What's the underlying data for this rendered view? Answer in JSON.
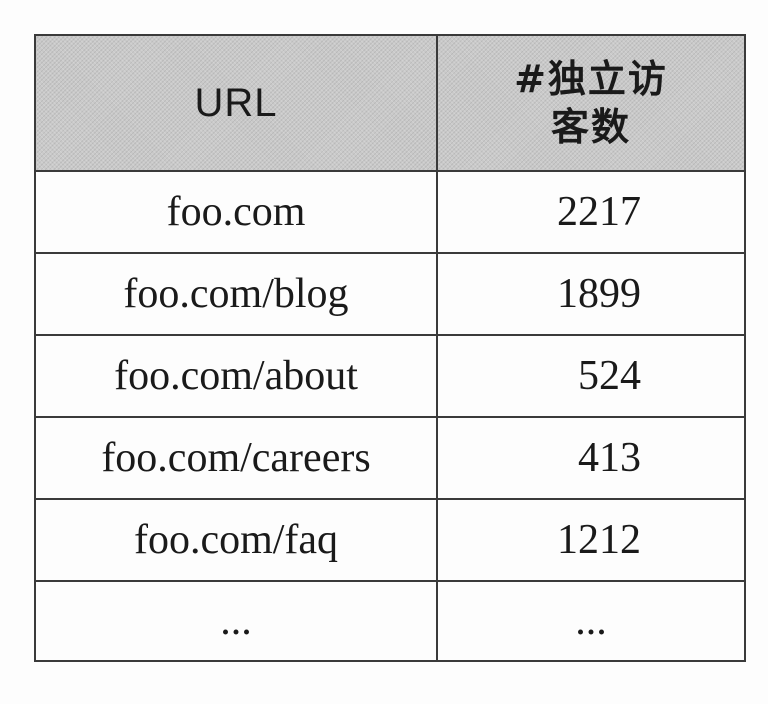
{
  "table": {
    "headers": {
      "url": "URL",
      "unique_visitors": "#独立访客数"
    },
    "rows": [
      {
        "url": "foo.com",
        "visitors": "2217"
      },
      {
        "url": "foo.com/blog",
        "visitors": "1899"
      },
      {
        "url": "foo.com/about",
        "visitors": "524"
      },
      {
        "url": "foo.com/careers",
        "visitors": "413"
      },
      {
        "url": "foo.com/faq",
        "visitors": "1212"
      },
      {
        "url": "...",
        "visitors": "..."
      }
    ]
  }
}
